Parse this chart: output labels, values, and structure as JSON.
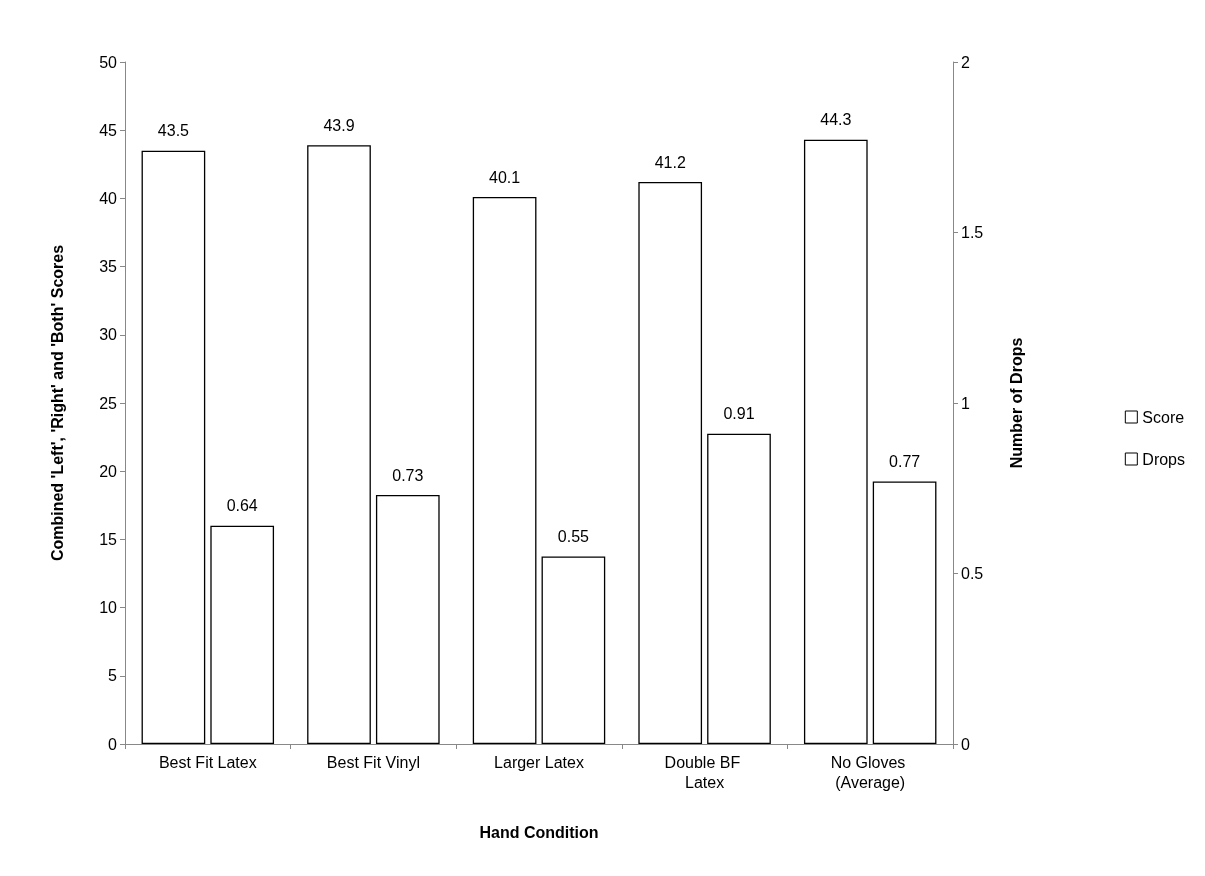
{
  "chart_data": {
    "type": "bar",
    "xlabel": "Hand Condition",
    "ylabel": "Combined 'Left', 'Right' and 'Both' Scores",
    "y2label": "Number of Drops",
    "categories": [
      "Best Fit Latex",
      "Best Fit Vinyl",
      "Larger Latex",
      "Double BF Latex",
      "No Gloves (Average)"
    ],
    "series": [
      {
        "name": "Score",
        "color": "#ffffff",
        "values": [
          43.5,
          43.9,
          40.1,
          41.2,
          44.3
        ]
      },
      {
        "name": "Drops",
        "color": "#ffffff",
        "axis": "y2",
        "values": [
          0.64,
          0.73,
          0.55,
          0.91,
          0.77
        ]
      }
    ],
    "ylim": [
      0,
      50
    ],
    "yticks": [
      0,
      5,
      10,
      15,
      20,
      25,
      30,
      35,
      40,
      45,
      50
    ],
    "y2lim": [
      0,
      2
    ],
    "y2ticks": [
      0,
      0.5,
      1,
      1.5,
      2
    ],
    "data_labels": true,
    "legend": "right",
    "grid": false
  }
}
